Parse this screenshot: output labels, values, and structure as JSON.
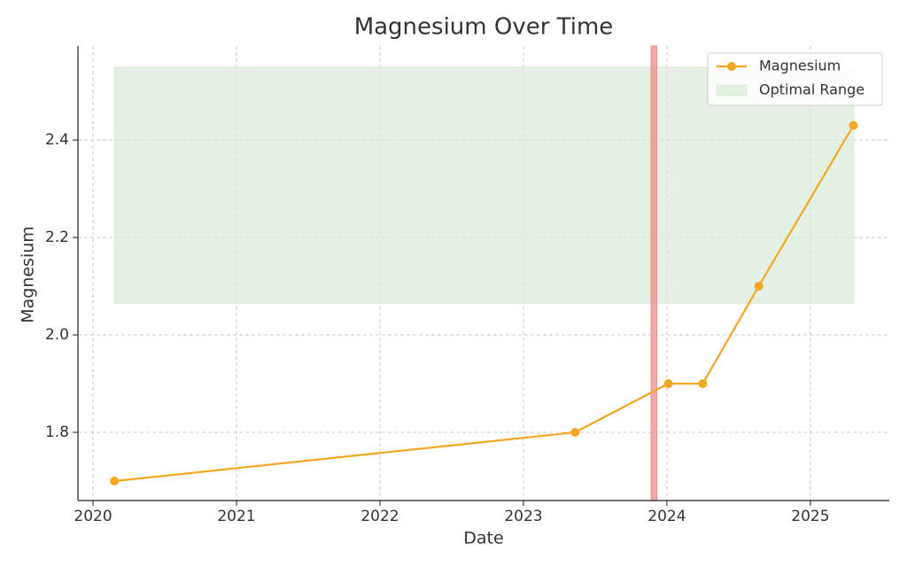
{
  "chart_data": {
    "type": "line",
    "title": "Magnesium Over Time",
    "x_label": "Date",
    "y_label": "Magnesium",
    "x": [
      2020.15,
      2023.36,
      2024.01,
      2024.25,
      2024.64,
      2025.3
    ],
    "series": [
      {
        "name": "Magnesium",
        "color": "#f5a623",
        "values": [
          1.7,
          1.8,
          1.9,
          1.9,
          2.1,
          2.43
        ]
      }
    ],
    "bands": [
      {
        "name": "Optimal Range",
        "color": "#d8ebd5",
        "x": [
          2020.15,
          2025.3
        ],
        "y": [
          2.065,
          2.55
        ]
      }
    ],
    "vspans": [
      {
        "color": "#f08a8a",
        "x": [
          2023.89,
          2023.93
        ]
      }
    ],
    "xlim": [
      2019.895,
      2025.55
    ],
    "xticks": [
      2020,
      2021,
      2022,
      2023,
      2024,
      2025
    ],
    "ylim": [
      1.66,
      2.593
    ],
    "yticks": [
      {
        "value": 1.8,
        "label": "1.8"
      },
      {
        "value": 2.0,
        "label": "2.0"
      },
      {
        "value": 2.2,
        "label": "2.2"
      },
      {
        "value": 2.4,
        "label": "2.4"
      }
    ],
    "grid": true,
    "legend": "upper right"
  }
}
